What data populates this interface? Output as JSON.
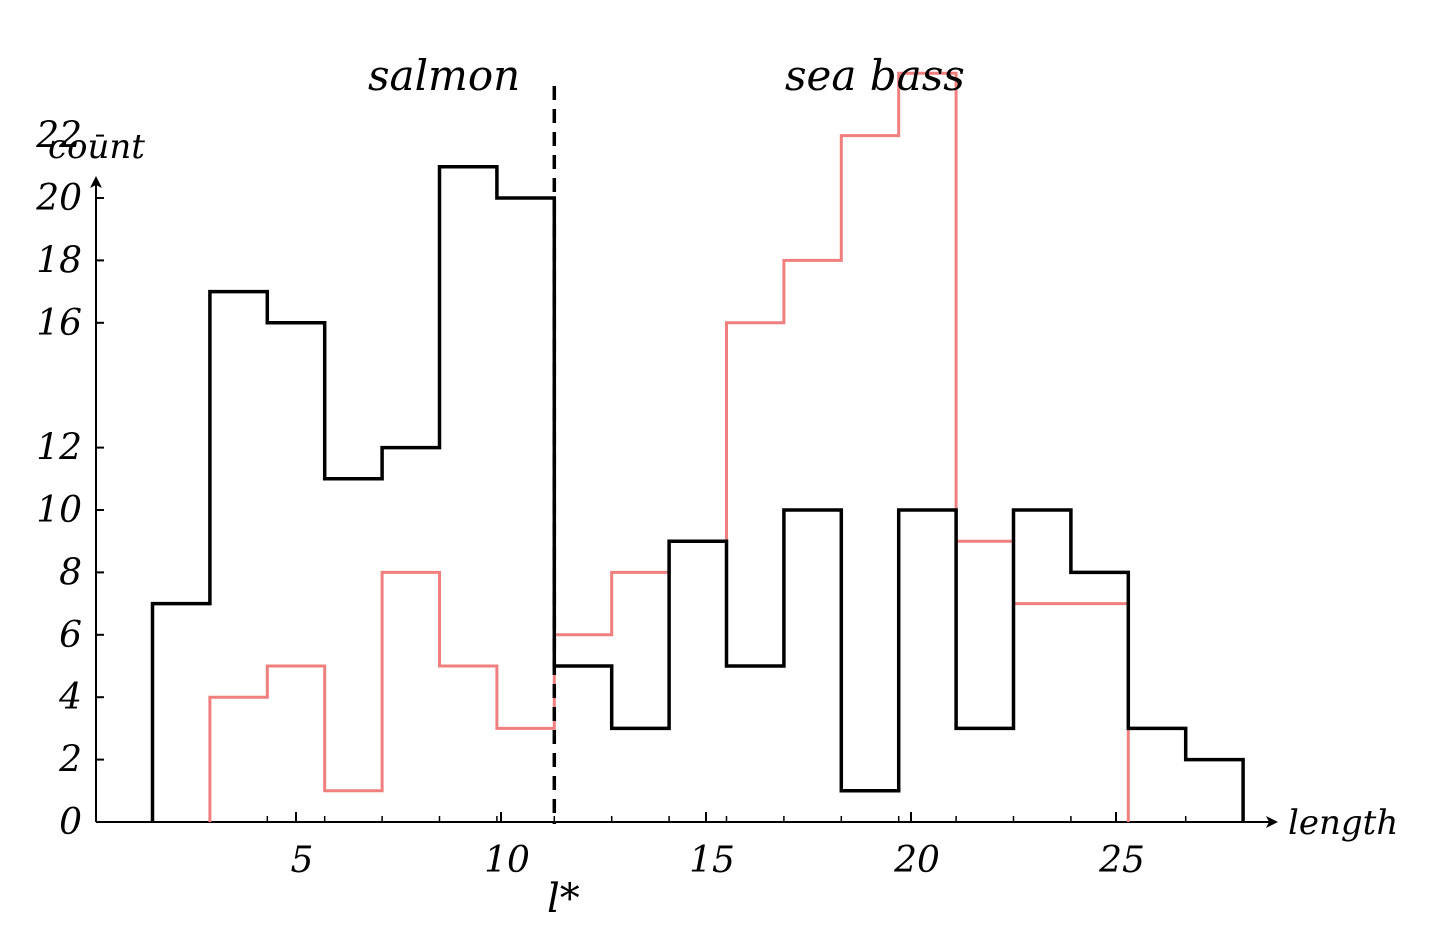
{
  "chart_data": {
    "type": "histogram-step",
    "xlabel": "length",
    "ylabel": "count",
    "xlim": [
      -0.2,
      28.5
    ],
    "ylim": [
      0,
      22
    ],
    "xticks": [
      5,
      10,
      15,
      20,
      25
    ],
    "yticks": [
      0,
      2,
      4,
      6,
      8,
      10,
      12,
      16,
      18,
      20,
      22
    ],
    "bin_edges": [
      1.5,
      2.9,
      4.3,
      5.7,
      7.1,
      8.5,
      9.9,
      11.3,
      12.7,
      14.1,
      15.5,
      16.9,
      18.3,
      19.7,
      21.1,
      22.5,
      23.9,
      25.3,
      26.7,
      28.1
    ],
    "series": [
      {
        "name": "salmon",
        "color": "#000000",
        "counts": [
          7,
          17,
          16,
          11,
          12,
          21,
          20,
          5,
          3,
          9,
          5,
          10,
          1,
          10,
          3,
          10,
          8,
          3,
          2
        ]
      },
      {
        "name": "sea bass",
        "color": "#f07f7f",
        "counts": [
          0,
          4,
          5,
          1,
          8,
          5,
          3,
          6,
          8,
          9,
          16,
          18,
          22,
          24,
          9,
          7,
          7,
          0,
          0
        ]
      }
    ],
    "threshold": {
      "label": "l*",
      "x": 11.3
    },
    "series_labels": [
      {
        "text": "salmon",
        "color": "#000000"
      },
      {
        "text": "sea bass",
        "color": "#e8101c"
      }
    ]
  }
}
